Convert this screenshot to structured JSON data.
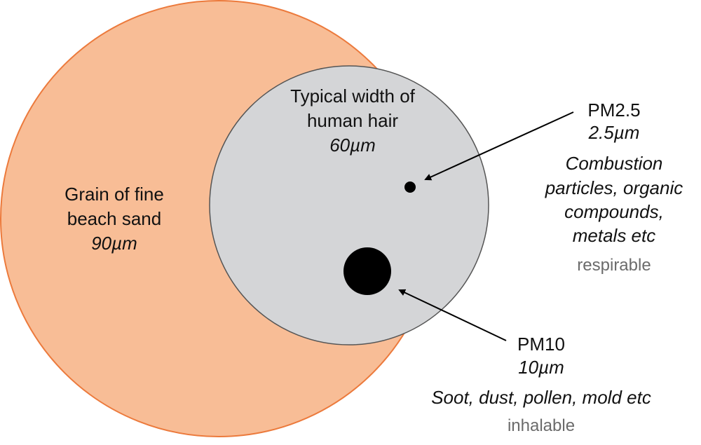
{
  "colors": {
    "sand_fill": "#f8bd96",
    "sand_stroke": "#ec7a3c",
    "hair_fill": "#d4d5d7",
    "hair_stroke": "#555555",
    "particle": "#000000",
    "muted_text": "#6b6b6b"
  },
  "sand": {
    "line1": "Grain of fine",
    "line2": "beach sand",
    "size": "90µm"
  },
  "hair": {
    "line1": "Typical width of",
    "line2": "human hair",
    "size": "60µm"
  },
  "pm25": {
    "name": "PM2.5",
    "size": "2.5µm",
    "desc1": "Combustion",
    "desc2": "particles, organic",
    "desc3": "compounds,",
    "desc4": "metals etc",
    "category": "respirable"
  },
  "pm10": {
    "name": "PM10",
    "size": "10µm",
    "desc": "Soot, dust, pollen, mold etc",
    "category": "inhalable"
  }
}
